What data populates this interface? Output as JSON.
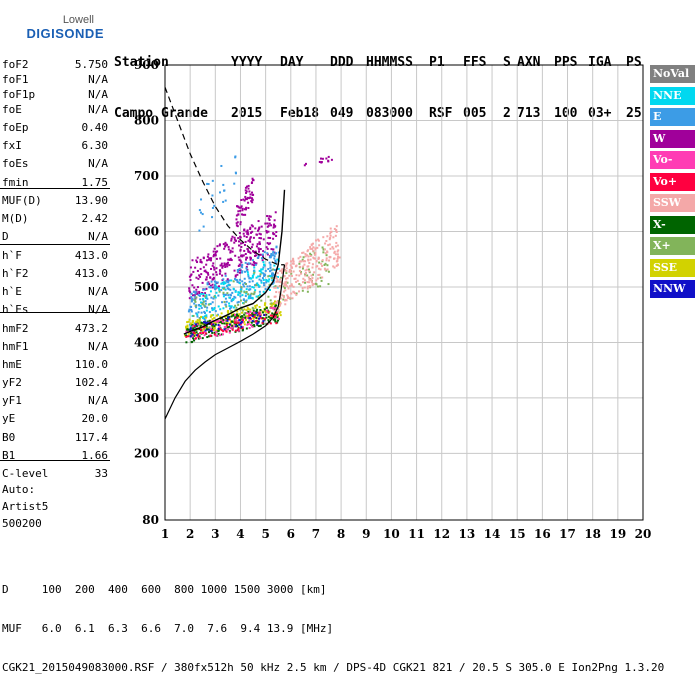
{
  "logo": {
    "line1": "Lowell",
    "line2": "DIGISONDE"
  },
  "header": {
    "row1": [
      "Station",
      "YYYY",
      "DAY",
      "DDD",
      "HHMMSS",
      "P1",
      "FFS",
      "S",
      "AXN",
      "PPS",
      "IGA",
      "PS"
    ],
    "row2": [
      "Campo Grande",
      "2015",
      "Feb18",
      "049",
      "083000",
      "RSF",
      "005",
      "2",
      "713",
      "100",
      "03+",
      "25"
    ]
  },
  "params": [
    {
      "k": "foF2",
      "v": "5.750"
    },
    {
      "k": "foF1",
      "v": "N/A"
    },
    {
      "k": "foF1p",
      "v": "N/A"
    },
    {
      "k": "foE",
      "v": "N/A"
    },
    {
      "k": "foEp",
      "v": "0.40"
    },
    {
      "k": "fxI",
      "v": "6.30"
    },
    {
      "k": "foEs",
      "v": "N/A"
    },
    {
      "k": "fmin",
      "v": "1.75"
    },
    {
      "k": "MUF(D)",
      "v": "13.90"
    },
    {
      "k": "M(D)",
      "v": "2.42"
    },
    {
      "k": "D",
      "v": "N/A"
    },
    {
      "k": "h`F",
      "v": "413.0"
    },
    {
      "k": "h`F2",
      "v": "413.0"
    },
    {
      "k": "h`E",
      "v": "N/A"
    },
    {
      "k": "h`Es",
      "v": "N/A"
    },
    {
      "k": "hmF2",
      "v": "473.2"
    },
    {
      "k": "hmF1",
      "v": "N/A"
    },
    {
      "k": "hmE",
      "v": "110.0"
    },
    {
      "k": "yF2",
      "v": "102.4"
    },
    {
      "k": "yF1",
      "v": "N/A"
    },
    {
      "k": "yE",
      "v": "20.0"
    },
    {
      "k": "B0",
      "v": "117.4"
    },
    {
      "k": "B1",
      "v": "1.66"
    },
    {
      "k": "C-level",
      "v": "33"
    }
  ],
  "misc": {
    "auto": "Auto:",
    "artist": "Artist5",
    "code": "500200"
  },
  "legend": [
    {
      "label": "NoVal",
      "color": "#808080"
    },
    {
      "label": "NNE",
      "color": "#00d8f0"
    },
    {
      "label": "E",
      "color": "#3c9ce6"
    },
    {
      "label": "W",
      "color": "#a0009a"
    },
    {
      "label": "Vo-",
      "color": "#ff3cb4"
    },
    {
      "label": "Vo+",
      "color": "#ff0040"
    },
    {
      "label": "SSW",
      "color": "#f4a8a8"
    },
    {
      "label": "X-",
      "color": "#006400"
    },
    {
      "label": "X+",
      "color": "#82b45a"
    },
    {
      "label": "SSE",
      "color": "#d2d200"
    },
    {
      "label": "NNW",
      "color": "#1010c8"
    }
  ],
  "footer": {
    "line1": "D     100  200  400  600  800 1000 1500 3000 [km]",
    "line2": "MUF   6.0  6.1  6.3  6.6  7.0  7.6  9.4 13.9 [MHz]",
    "line3": "CGK21_2015049083000.RSF / 380fx512h 50 kHz 2.5 km / DPS-4D CGK21 821 / 20.5 S 305.0 E Ion2Png 1.3.20"
  },
  "chart_data": {
    "type": "scatter",
    "x_ticks": [
      "1",
      "2",
      "3",
      "4",
      "5",
      "6",
      "7",
      "8",
      "9",
      "10",
      "11",
      "12",
      "13",
      "14",
      "15",
      "16",
      "17",
      "18",
      "19",
      "20"
    ],
    "y_ticks": [
      "80",
      "200",
      "300",
      "400",
      "500",
      "600",
      "700",
      "800",
      "900"
    ],
    "xlim": [
      1,
      20
    ],
    "ylim": [
      80,
      900
    ],
    "grid": true,
    "profile_curve": {
      "x": [
        1.0,
        1.4,
        1.8,
        2.2,
        2.6,
        3.0,
        3.5,
        4.0,
        4.5,
        5.0,
        5.3,
        5.5,
        5.6,
        5.75
      ],
      "y": [
        262,
        300,
        330,
        350,
        365,
        378,
        390,
        402,
        415,
        430,
        445,
        465,
        490,
        540
      ]
    },
    "profile_dashed": {
      "x": [
        1.0,
        1.5,
        2.0,
        2.5,
        3.0,
        3.5,
        4.0,
        4.5,
        5.0,
        5.5,
        5.75
      ],
      "y": [
        860,
        800,
        740,
        690,
        645,
        610,
        585,
        565,
        550,
        540,
        540
      ]
    },
    "fitted_trace": {
      "x": [
        1.75,
        2.0,
        2.5,
        3.0,
        3.5,
        4.0,
        4.5,
        5.0,
        5.3,
        5.5,
        5.65,
        5.75
      ],
      "y": [
        415,
        420,
        428,
        440,
        450,
        462,
        470,
        490,
        510,
        540,
        600,
        675
      ]
    },
    "clusters": [
      {
        "series": "W",
        "x": [
          1.9,
          5.4
        ],
        "y": [
          470,
          640
        ],
        "n": 320
      },
      {
        "series": "W",
        "x": [
          3.8,
          4.5
        ],
        "y": [
          600,
          710
        ],
        "n": 60
      },
      {
        "series": "W",
        "x": [
          6.5,
          7.8
        ],
        "y": [
          720,
          740
        ],
        "n": 12
      },
      {
        "series": "E",
        "x": [
          1.9,
          5.5
        ],
        "y": [
          420,
          580
        ],
        "n": 260
      },
      {
        "series": "E",
        "x": [
          2.2,
          3.8
        ],
        "y": [
          580,
          760
        ],
        "n": 25
      },
      {
        "series": "NNE",
        "x": [
          2.0,
          5.5
        ],
        "y": [
          430,
          560
        ],
        "n": 120
      },
      {
        "series": "SSE",
        "x": [
          1.75,
          5.6
        ],
        "y": [
          410,
          480
        ],
        "n": 220
      },
      {
        "series": "X-",
        "x": [
          1.8,
          5.5
        ],
        "y": [
          400,
          470
        ],
        "n": 200
      },
      {
        "series": "X+",
        "x": [
          2.0,
          7.5
        ],
        "y": [
          410,
          580
        ],
        "n": 120
      },
      {
        "series": "SSW",
        "x": [
          5.3,
          7.9
        ],
        "y": [
          450,
          620
        ],
        "n": 260
      },
      {
        "series": "Vo-",
        "x": [
          1.8,
          5.5
        ],
        "y": [
          400,
          470
        ],
        "n": 80
      },
      {
        "series": "Vo+",
        "x": [
          1.8,
          5.4
        ],
        "y": [
          405,
          460
        ],
        "n": 60
      },
      {
        "series": "NNW",
        "x": [
          1.8,
          5.0
        ],
        "y": [
          410,
          460
        ],
        "n": 40
      }
    ]
  }
}
